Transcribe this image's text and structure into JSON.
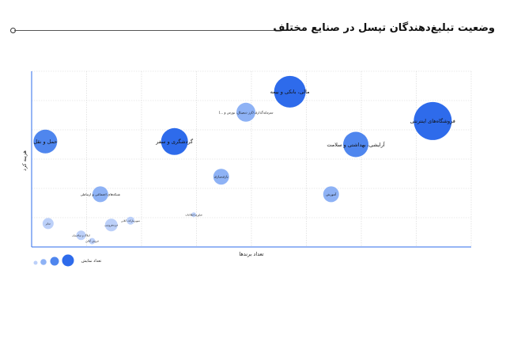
{
  "title": "وضعیت تبلیغ‌دهندگان تپسل در صنایع مختلف",
  "chart_data": {
    "type": "scatter",
    "subtype": "bubble",
    "title": "وضعیت تبلیغ‌دهندگان تپسل در صنایع مختلف",
    "xlabel": "تعداد برندها",
    "ylabel": "هزینه کرد",
    "xlim": [
      0,
      8
    ],
    "ylim": [
      0,
      6
    ],
    "grid": true,
    "legend_position": "bottom-left",
    "legend_label": "تعداد نمایش",
    "colors": {
      "dark": "#2E6BEB",
      "medium": "#4F86EE",
      "light": "#8EB2F5",
      "pale": "#BCD0F9"
    },
    "points": [
      {
        "label": "فروشگاه‌های اینترنتی",
        "x": 7.3,
        "y": 4.3,
        "size": 24,
        "color": "dark"
      },
      {
        "label": "مالی، بانکی و بیمه",
        "x": 4.7,
        "y": 5.3,
        "size": 20,
        "color": "dark"
      },
      {
        "label": "گردشگری و سفر",
        "x": 2.6,
        "y": 3.6,
        "size": 17,
        "color": "dark"
      },
      {
        "label": "حمل و نقل",
        "x": 0.25,
        "y": 3.6,
        "size": 15,
        "color": "medium"
      },
      {
        "label": "آرایشی، بهداشتی و سلامت",
        "x": 5.9,
        "y": 3.5,
        "size": 16,
        "color": "medium"
      },
      {
        "label": "سرمایه‌گذاری (ارز دیجیتال، بورس و ...)",
        "x": 3.9,
        "y": 4.6,
        "size": 12,
        "color": "light"
      },
      {
        "label": "بازی‌سازی",
        "x": 3.45,
        "y": 2.4,
        "size": 10,
        "color": "light"
      },
      {
        "label": "آموزش",
        "x": 5.45,
        "y": 1.8,
        "size": 10,
        "color": "light"
      },
      {
        "label": "شبکه‌های اجتماعی و ارتباطی",
        "x": 1.25,
        "y": 1.8,
        "size": 10,
        "color": "light"
      },
      {
        "label": "سایر",
        "x": 0.3,
        "y": 0.8,
        "size": 7,
        "color": "pale"
      },
      {
        "label": "خرده‌فروشی",
        "x": 1.45,
        "y": 0.75,
        "size": 8,
        "color": "pale"
      },
      {
        "label": "سوپرمارکت آنلاین",
        "x": 1.8,
        "y": 0.9,
        "size": 5,
        "color": "pale"
      },
      {
        "label": "املاک و ساختمان",
        "x": 0.9,
        "y": 0.4,
        "size": 6,
        "color": "pale"
      },
      {
        "label": "فروش آنلاین",
        "x": 1.1,
        "y": 0.2,
        "size": 4,
        "color": "pale"
      },
      {
        "label": "فناوری اطلاعات",
        "x": 2.95,
        "y": 1.1,
        "size": 3,
        "color": "pale"
      }
    ]
  }
}
